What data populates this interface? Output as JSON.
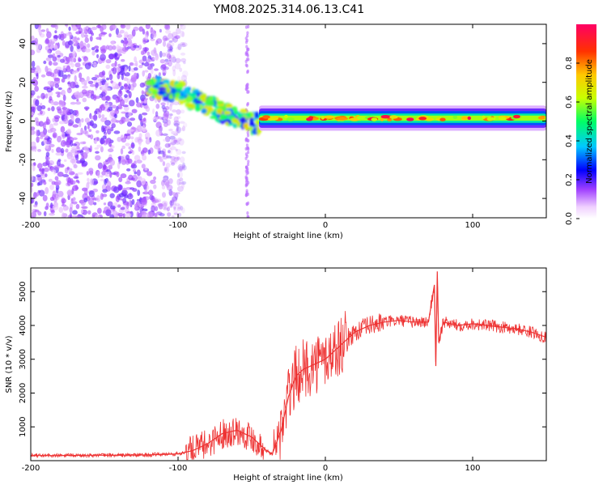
{
  "title": "YM08.2025.314.06.13.C41",
  "chart_data": [
    {
      "type": "heatmap",
      "title": "YM08.2025.314.06.13.C41",
      "xlabel": "Height of straight line (km)",
      "ylabel": "Frequency (Hz)",
      "xlim": [
        -200,
        150
      ],
      "ylim": [
        -50,
        50
      ],
      "xticks": [
        "-200",
        "-100",
        "0",
        "100"
      ],
      "yticks": [
        "40",
        "20",
        "0",
        "-20",
        "-40"
      ],
      "colorbar": {
        "label": "Normalized spectral amplitude",
        "range": [
          0,
          1
        ],
        "ticks": [
          "0.0",
          "0.2",
          "0.4",
          "0.6",
          "0.8"
        ],
        "colors": [
          "#ffffff",
          "#a040ff",
          "#0000ff",
          "#00c8ff",
          "#00ff64",
          "#c8ff00",
          "#ffc800",
          "#ff3200",
          "#ff0064"
        ]
      },
      "features": [
        {
          "name": "low-amplitude scatter",
          "x_range": [
            -200,
            -95
          ],
          "freq_range": [
            -50,
            50
          ],
          "amplitude": 0.15
        },
        {
          "name": "descending track",
          "x": [
            -120,
            -100,
            -80,
            -65,
            -55,
            -45
          ],
          "freq": [
            18,
            15,
            8,
            3,
            0,
            -2
          ],
          "amplitude": 0.5
        },
        {
          "name": "vertical streak",
          "x": -53,
          "freq_range": [
            -50,
            50
          ],
          "amplitude": 0.08
        },
        {
          "name": "main band",
          "x_range": [
            -45,
            150
          ],
          "freq_center": 1.5,
          "amplitude": 0.85
        }
      ]
    },
    {
      "type": "line",
      "xlabel": "Height of straight line (km)",
      "ylabel": "SNR (10 * v/v)",
      "xlim": [
        -200,
        150
      ],
      "ylim": [
        0,
        5700
      ],
      "xticks": [
        "-200",
        "-100",
        "0",
        "100"
      ],
      "yticks": [
        "1000",
        "2000",
        "3000",
        "4000",
        "5000"
      ],
      "color": "#ee3333",
      "series": [
        {
          "name": "SNR",
          "x": [
            -200,
            -180,
            -160,
            -140,
            -120,
            -100,
            -90,
            -80,
            -70,
            -60,
            -50,
            -40,
            -36,
            -30,
            -25,
            -20,
            -15,
            -10,
            -5,
            0,
            5,
            10,
            15,
            20,
            30,
            40,
            50,
            60,
            70,
            74,
            75,
            76,
            77,
            80,
            90,
            100,
            110,
            120,
            130,
            140,
            150
          ],
          "values": [
            150,
            150,
            160,
            160,
            170,
            200,
            300,
            500,
            800,
            900,
            700,
            300,
            200,
            900,
            1900,
            2500,
            2700,
            2800,
            2900,
            3000,
            3200,
            3400,
            3600,
            3800,
            4000,
            4100,
            4150,
            4100,
            4100,
            5200,
            2800,
            5600,
            3500,
            4100,
            4000,
            4050,
            4000,
            3950,
            3900,
            3800,
            3650
          ]
        }
      ]
    }
  ]
}
